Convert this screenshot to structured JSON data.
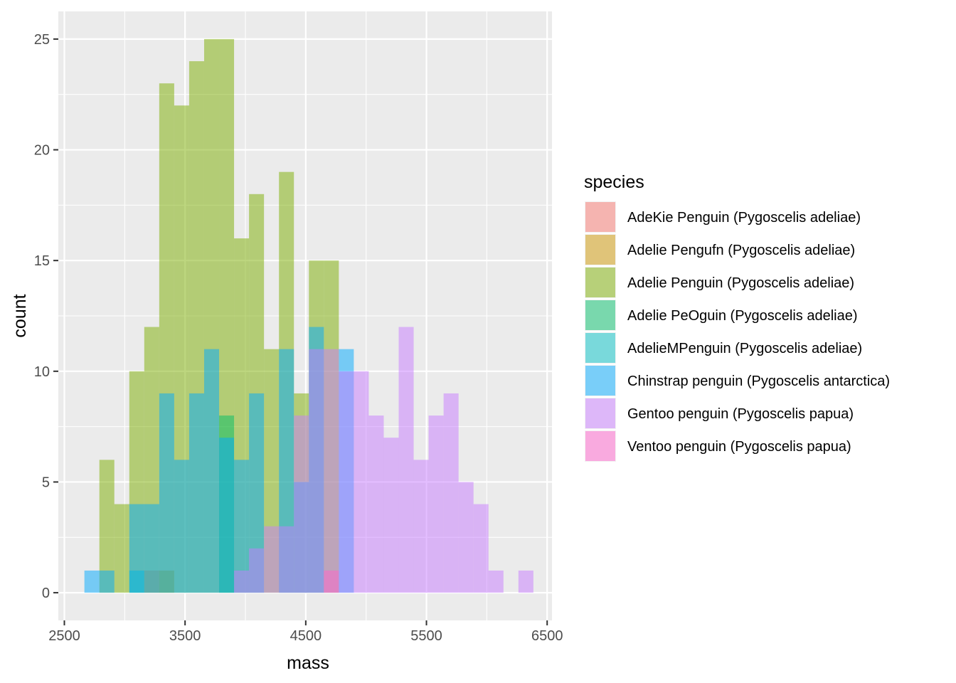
{
  "chart_data": {
    "type": "histogram",
    "xlabel": "mass",
    "ylabel": "count",
    "xlim": [
      2450,
      6540
    ],
    "ylim": [
      -1.25,
      26.25
    ],
    "x_ticks": [
      2500,
      3500,
      4500,
      5500,
      6500
    ],
    "x_tick_labels": [
      "2500",
      "3500",
      "4500",
      "5500",
      "6500"
    ],
    "y_ticks": [
      0,
      5,
      10,
      15,
      20,
      25
    ],
    "y_tick_labels": [
      "0",
      "5",
      "10",
      "15",
      "20",
      "25"
    ],
    "grid": true,
    "stacked": false,
    "bar_alpha": 0.5,
    "legend": {
      "title": "species",
      "position": "right"
    },
    "bin_width": 124,
    "series": [
      {
        "name": "AdeKie Penguin (Pygoscelis adeliae)",
        "color": "#F8766D",
        "bins": [
          {
            "x0": 3162,
            "x1": 3286,
            "count": 1
          }
        ]
      },
      {
        "name": "Adelie Pengufn (Pygoscelis adeliae)",
        "color": "#CD9600",
        "bins": [
          {
            "x0": 3286,
            "x1": 3410,
            "count": 1
          }
        ]
      },
      {
        "name": "Adelie Penguin (Pygoscelis adeliae)",
        "color": "#7CAE00",
        "bins": [
          {
            "x0": 2790,
            "x1": 2914,
            "count": 6
          },
          {
            "x0": 2914,
            "x1": 3038,
            "count": 4
          },
          {
            "x0": 3038,
            "x1": 3162,
            "count": 10
          },
          {
            "x0": 3162,
            "x1": 3286,
            "count": 12
          },
          {
            "x0": 3286,
            "x1": 3410,
            "count": 23
          },
          {
            "x0": 3410,
            "x1": 3534,
            "count": 22
          },
          {
            "x0": 3534,
            "x1": 3658,
            "count": 24
          },
          {
            "x0": 3658,
            "x1": 3782,
            "count": 25
          },
          {
            "x0": 3782,
            "x1": 3906,
            "count": 25
          },
          {
            "x0": 3906,
            "x1": 4030,
            "count": 16
          },
          {
            "x0": 4030,
            "x1": 4154,
            "count": 18
          },
          {
            "x0": 4154,
            "x1": 4278,
            "count": 11
          },
          {
            "x0": 4278,
            "x1": 4402,
            "count": 19
          },
          {
            "x0": 4402,
            "x1": 4526,
            "count": 9
          },
          {
            "x0": 4526,
            "x1": 4650,
            "count": 15
          },
          {
            "x0": 4650,
            "x1": 4774,
            "count": 15
          }
        ]
      },
      {
        "name": "Adelie PeOguin (Pygoscelis adeliae)",
        "color": "#00BE67",
        "bins": [
          {
            "x0": 3782,
            "x1": 3906,
            "count": 8
          }
        ]
      },
      {
        "name": "AdelieMPenguin (Pygoscelis adeliae)",
        "color": "#00BFC4",
        "bins": [
          {
            "x0": 3038,
            "x1": 3162,
            "count": 1
          }
        ]
      },
      {
        "name": "Chinstrap penguin (Pygoscelis antarctica)",
        "color": "#00A9FF",
        "bins": [
          {
            "x0": 2666,
            "x1": 2790,
            "count": 1
          },
          {
            "x0": 2790,
            "x1": 2914,
            "count": 1
          },
          {
            "x0": 3038,
            "x1": 3162,
            "count": 4
          },
          {
            "x0": 3162,
            "x1": 3286,
            "count": 4
          },
          {
            "x0": 3286,
            "x1": 3410,
            "count": 9
          },
          {
            "x0": 3410,
            "x1": 3534,
            "count": 6
          },
          {
            "x0": 3534,
            "x1": 3658,
            "count": 9
          },
          {
            "x0": 3658,
            "x1": 3782,
            "count": 11
          },
          {
            "x0": 3782,
            "x1": 3906,
            "count": 7
          },
          {
            "x0": 3906,
            "x1": 4030,
            "count": 6
          },
          {
            "x0": 4030,
            "x1": 4154,
            "count": 9
          },
          {
            "x0": 4278,
            "x1": 4402,
            "count": 11
          },
          {
            "x0": 4402,
            "x1": 4526,
            "count": 5
          },
          {
            "x0": 4526,
            "x1": 4650,
            "count": 12
          },
          {
            "x0": 4774,
            "x1": 4898,
            "count": 11
          }
        ]
      },
      {
        "name": "Gentoo penguin (Pygoscelis papua)",
        "color": "#C77CFF",
        "bins": [
          {
            "x0": 3906,
            "x1": 4030,
            "count": 1
          },
          {
            "x0": 4030,
            "x1": 4154,
            "count": 2
          },
          {
            "x0": 4154,
            "x1": 4278,
            "count": 3
          },
          {
            "x0": 4278,
            "x1": 4402,
            "count": 3
          },
          {
            "x0": 4402,
            "x1": 4526,
            "count": 8
          },
          {
            "x0": 4526,
            "x1": 4650,
            "count": 11
          },
          {
            "x0": 4650,
            "x1": 4774,
            "count": 11
          },
          {
            "x0": 4774,
            "x1": 4898,
            "count": 10
          },
          {
            "x0": 4898,
            "x1": 5022,
            "count": 10
          },
          {
            "x0": 5022,
            "x1": 5146,
            "count": 8
          },
          {
            "x0": 5146,
            "x1": 5270,
            "count": 7
          },
          {
            "x0": 5270,
            "x1": 5394,
            "count": 12
          },
          {
            "x0": 5394,
            "x1": 5518,
            "count": 6
          },
          {
            "x0": 5518,
            "x1": 5642,
            "count": 8
          },
          {
            "x0": 5642,
            "x1": 5766,
            "count": 9
          },
          {
            "x0": 5766,
            "x1": 5890,
            "count": 5
          },
          {
            "x0": 5890,
            "x1": 6014,
            "count": 4
          },
          {
            "x0": 6014,
            "x1": 6138,
            "count": 1
          },
          {
            "x0": 6262,
            "x1": 6386,
            "count": 1
          }
        ]
      },
      {
        "name": "Ventoo penguin (Pygoscelis papua)",
        "color": "#FF61CC",
        "bins": [
          {
            "x0": 4650,
            "x1": 4774,
            "count": 1
          }
        ]
      }
    ]
  }
}
